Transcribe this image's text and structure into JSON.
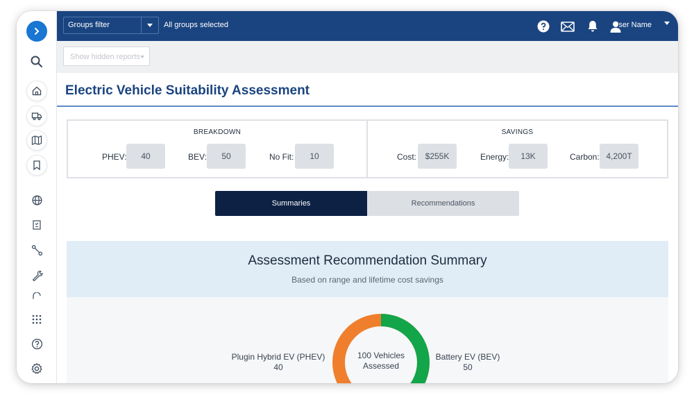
{
  "topbar": {
    "groups_filter_label": "Groups filter",
    "groups_status": "All groups selected",
    "user_name": "User Name",
    "bg_color": "#1a4480"
  },
  "toolbar": {
    "hidden_reports_placeholder": "Show hidden reports"
  },
  "page": {
    "title": "Electric Vehicle Suitability Assessment"
  },
  "breakdown": {
    "heading": "BREAKDOWN",
    "items": [
      {
        "label": "PHEV:",
        "value": "40"
      },
      {
        "label": "BEV:",
        "value": "50"
      },
      {
        "label": "No Fit:",
        "value": "10"
      }
    ]
  },
  "savings": {
    "heading": "SAVINGS",
    "items": [
      {
        "label": "Cost:",
        "value": "$255K"
      },
      {
        "label": "Energy:",
        "value": "13K"
      },
      {
        "label": "Carbon:",
        "value": "4,200T"
      }
    ]
  },
  "tabs": [
    {
      "label": "Summaries",
      "active": true
    },
    {
      "label": "Recommendations",
      "active": false
    }
  ],
  "summary": {
    "title": "Assessment Recommendation Summary",
    "subtitle": "Based on range and lifetime cost savings",
    "center_line1": "100 Vehicles",
    "center_line2": "Assessed",
    "left_legend": {
      "label": "Plugin Hybrid EV (PHEV)",
      "value": "40",
      "color": "#ef7f2d"
    },
    "right_legend": {
      "label": "Battery EV (BEV)",
      "value": "50",
      "color": "#12a54a"
    }
  },
  "sidebar_icons": [
    "expand-icon",
    "search-icon",
    "home-icon",
    "truck-icon",
    "map-icon",
    "bookmark-icon",
    "globe-icon",
    "checklist-icon",
    "route-icon",
    "wrench-icon",
    "apps-grid-icon",
    "help-icon",
    "settings-icon"
  ],
  "colors": {
    "accent": "#1976d2",
    "tab_active": "#0d2145",
    "phev": "#ef7f2d",
    "bev": "#12a54a"
  }
}
